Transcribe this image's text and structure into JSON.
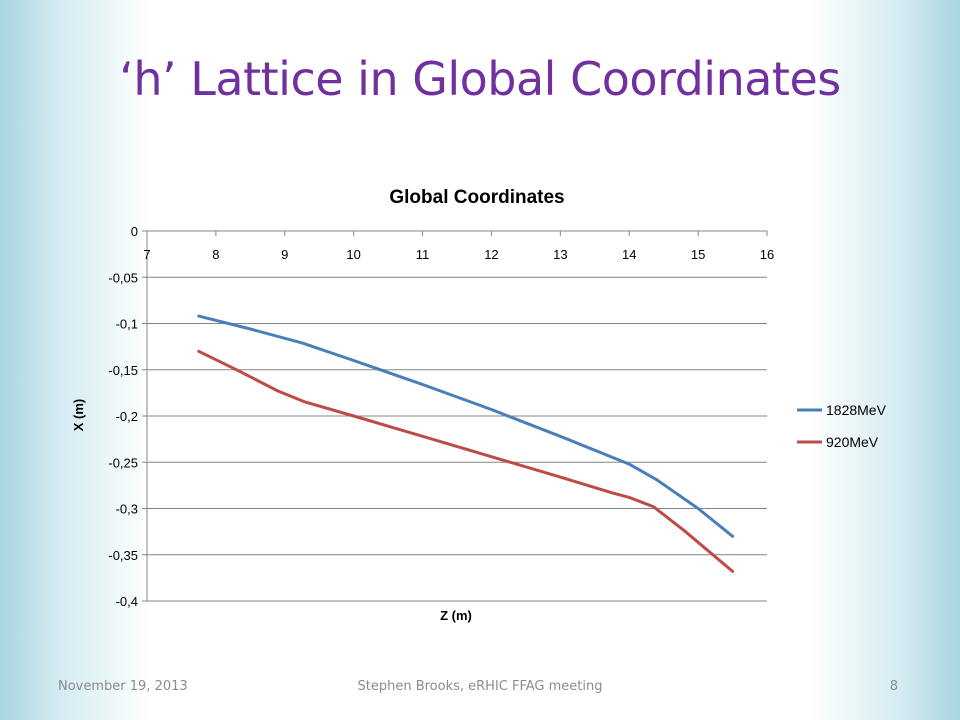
{
  "slide": {
    "title": "‘h’ Lattice in Global Coordinates",
    "footer_date": "November 19, 2013",
    "footer_center": "Stephen Brooks, eRHIC FFAG meeting",
    "page_number": "8"
  },
  "colors": {
    "title": "#7030a0",
    "series_1828": "#4a7ebb",
    "series_920": "#be4b48",
    "grid": "#868686"
  },
  "chart_data": {
    "type": "line",
    "title": "Global Coordinates",
    "xlabel": "Z (m)",
    "ylabel": "X (m)",
    "xlim": [
      7,
      16
    ],
    "ylim": [
      -0.4,
      0
    ],
    "x_ticks": [
      "7",
      "8",
      "9",
      "10",
      "11",
      "12",
      "13",
      "14",
      "15",
      "16"
    ],
    "y_ticks": [
      "0",
      "-0,05",
      "-0,1",
      "-0,15",
      "-0,2",
      "-0,25",
      "-0,3",
      "-0,35",
      "-0,4"
    ],
    "x_axis_position": "top",
    "grid": true,
    "legend_position": "right",
    "series": [
      {
        "name": "1828MeV",
        "color_key": "series_1828",
        "points": [
          [
            7.75,
            -0.092
          ],
          [
            8.5,
            -0.106
          ],
          [
            9.25,
            -0.121
          ],
          [
            10.0,
            -0.14
          ],
          [
            11.0,
            -0.166
          ],
          [
            12.0,
            -0.193
          ],
          [
            13.0,
            -0.222
          ],
          [
            14.0,
            -0.252
          ],
          [
            14.4,
            -0.269
          ],
          [
            15.0,
            -0.3
          ],
          [
            15.5,
            -0.33
          ]
        ]
      },
      {
        "name": "920MeV",
        "color_key": "series_920",
        "points": [
          [
            7.75,
            -0.13
          ],
          [
            8.3,
            -0.15
          ],
          [
            8.9,
            -0.173
          ],
          [
            9.3,
            -0.185
          ],
          [
            10.0,
            -0.2
          ],
          [
            11.0,
            -0.222
          ],
          [
            12.0,
            -0.244
          ],
          [
            13.0,
            -0.266
          ],
          [
            13.75,
            -0.283
          ],
          [
            14.0,
            -0.288
          ],
          [
            14.35,
            -0.298
          ],
          [
            14.8,
            -0.324
          ],
          [
            15.5,
            -0.368
          ]
        ]
      }
    ]
  }
}
